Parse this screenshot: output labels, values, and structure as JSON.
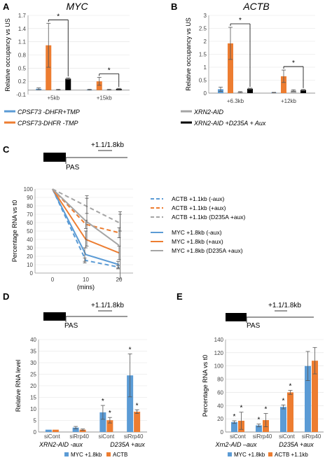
{
  "panels": {
    "A": {
      "letter": "A",
      "title": "MYC"
    },
    "B": {
      "letter": "B",
      "title": "ACTB"
    },
    "C": {
      "letter": "C"
    },
    "D": {
      "letter": "D"
    },
    "E": {
      "letter": "E"
    }
  },
  "legend_ab": {
    "items": [
      {
        "label": "CPSF73 -DHFR+TMP",
        "color": "#5b9bd5"
      },
      {
        "label": "XRN2-AID",
        "color": "#a5a5a5"
      },
      {
        "label": "CPSF73-DHFR -TMP",
        "color": "#ed7d31"
      },
      {
        "label": "XRN2-AID +D235A + Aux",
        "color": "#000000"
      }
    ]
  },
  "schematic": {
    "pas_label": "PAS",
    "probe_label": "+1.1/1.8kb"
  },
  "group_labels_d": {
    "left": "XRN2-AID -aux",
    "right": "D235A +aux"
  },
  "group_labels_e": {
    "left": "Xrn2-AID –aux",
    "right": "D235A +aux"
  },
  "colors": {
    "blue": "#5b9bd5",
    "orange": "#ed7d31",
    "gray": "#a5a5a5",
    "black": "#000000"
  },
  "chart_data": [
    {
      "panel": "A",
      "type": "bar",
      "title": "MYC",
      "ylabel": "Relative occupancy vs US",
      "categories": [
        "+5kb",
        "+15kb"
      ],
      "ylim": [
        -0.1,
        1.7
      ],
      "yticks": [
        -0.1,
        0.2,
        0.5,
        0.8,
        1.1,
        1.4,
        1.7
      ],
      "series": [
        {
          "name": "CPSF73 -DHFR+TMP",
          "color": "#5b9bd5",
          "values": [
            0.03,
            0.01
          ],
          "errors": [
            0.02,
            0.01
          ]
        },
        {
          "name": "CPSF73-DHFR -TMP",
          "color": "#ed7d31",
          "values": [
            1.02,
            0.2
          ],
          "errors": [
            0.5,
            0.09
          ]
        },
        {
          "name": "XRN2-AID",
          "color": "#a5a5a5",
          "values": [
            0.01,
            0.01
          ],
          "errors": [
            0.01,
            0.01
          ]
        },
        {
          "name": "XRN2-AID +D235A + Aux",
          "color": "#000000",
          "values": [
            0.26,
            0.03
          ],
          "errors": [
            0.02,
            0.01
          ]
        }
      ],
      "significance": [
        {
          "category": "+5kb",
          "from_series": 1,
          "to_series": 3,
          "label": "*"
        },
        {
          "category": "+15kb",
          "from_series": 1,
          "to_series": 3,
          "label": "*"
        }
      ]
    },
    {
      "panel": "B",
      "type": "bar",
      "title": "ACTB",
      "ylabel": "Relative occupancy vs US",
      "categories": [
        "+6.3kb",
        "+12kb"
      ],
      "ylim": [
        0,
        3
      ],
      "yticks": [
        0,
        0.5,
        1,
        1.5,
        2,
        2.5,
        3
      ],
      "series": [
        {
          "name": "CPSF73 -DHFR+TMP",
          "color": "#5b9bd5",
          "values": [
            0.15,
            0.02
          ],
          "errors": [
            0.08,
            0.01
          ]
        },
        {
          "name": "CPSF73-DHFR -TMP",
          "color": "#ed7d31",
          "values": [
            1.92,
            0.65
          ],
          "errors": [
            0.62,
            0.24
          ]
        },
        {
          "name": "XRN2-AID",
          "color": "#a5a5a5",
          "values": [
            0.04,
            0.1
          ],
          "errors": [
            0.02,
            0.03
          ]
        },
        {
          "name": "XRN2-AID +D235A + Aux",
          "color": "#000000",
          "values": [
            0.17,
            0.12
          ],
          "errors": [
            0.02,
            0.02
          ]
        }
      ],
      "significance": [
        {
          "category": "+6.3kb",
          "from_series": 1,
          "to_series": 3,
          "label": "*"
        },
        {
          "category": "+12kb",
          "from_series": 1,
          "to_series": 3,
          "label": "*"
        }
      ]
    },
    {
      "panel": "C",
      "type": "line",
      "ylabel": "Percentage RNA vs t0",
      "xlabel": "(mins)",
      "x": [
        0,
        10,
        20
      ],
      "ylim": [
        0,
        100
      ],
      "yticks": [
        0,
        10,
        20,
        30,
        40,
        50,
        60,
        70,
        80,
        90,
        100
      ],
      "series": [
        {
          "name": "ACTB +1.1kb (-aux)",
          "color": "#5b9bd5",
          "dashed": true,
          "values": [
            100,
            15,
            7
          ],
          "errors": [
            0,
            3,
            2
          ]
        },
        {
          "name": "ACTB +1.1kb (+aux)",
          "color": "#ed7d31",
          "dashed": true,
          "values": [
            100,
            58,
            48
          ],
          "errors": [
            0,
            5,
            6
          ]
        },
        {
          "name": "ACTB +1.1kb (D235A +aux)",
          "color": "#a5a5a5",
          "dashed": true,
          "values": [
            100,
            80,
            60
          ],
          "errors": [
            0,
            9,
            10
          ]
        },
        {
          "name": "MYC +1.8kb (-aux)",
          "color": "#5b9bd5",
          "dashed": false,
          "values": [
            100,
            22,
            10
          ],
          "errors": [
            0,
            8,
            4
          ]
        },
        {
          "name": "MYC +1.8kb (+aux)",
          "color": "#ed7d31",
          "dashed": false,
          "values": [
            100,
            40,
            24
          ],
          "errors": [
            0,
            10,
            8
          ]
        },
        {
          "name": "MYC +1.8kb (D235A +aux)",
          "color": "#a5a5a5",
          "dashed": false,
          "values": [
            100,
            62,
            33
          ],
          "errors": [
            0,
            30,
            40
          ]
        }
      ]
    },
    {
      "panel": "D",
      "type": "bar",
      "ylabel": "Relative RNA level",
      "categories": [
        "siCont",
        "siRrp40",
        "siCont",
        "siRrp40"
      ],
      "ylim": [
        0,
        40
      ],
      "yticks": [
        0,
        5,
        10,
        15,
        20,
        25,
        30,
        35,
        40
      ],
      "series": [
        {
          "name": "MYC +1.8kb",
          "color": "#5b9bd5",
          "values": [
            1,
            1.9,
            8.5,
            24.5
          ],
          "errors": [
            0,
            0.5,
            3,
            9.3
          ],
          "stars": [
            false,
            false,
            true,
            true
          ]
        },
        {
          "name": "ACTB",
          "color": "#ed7d31",
          "values": [
            1,
            1,
            5.1,
            8.8
          ],
          "errors": [
            0,
            0.3,
            1.2,
            0.8
          ],
          "stars": [
            false,
            false,
            true,
            true
          ]
        }
      ]
    },
    {
      "panel": "E",
      "type": "bar",
      "ylabel": "Percentage RNA vs t0",
      "categories": [
        "siCont",
        "siRrp40",
        "siCont",
        "siRrp40"
      ],
      "ylim": [
        0,
        140
      ],
      "yticks": [
        0,
        20,
        40,
        60,
        80,
        100,
        120,
        140
      ],
      "series": [
        {
          "name": "MYC +1.8kb",
          "color": "#5b9bd5",
          "values": [
            15,
            10,
            38,
            100
          ],
          "errors": [
            2,
            2,
            3,
            22
          ],
          "stars": [
            true,
            true,
            true,
            false
          ]
        },
        {
          "name": "ACTB +1.1kb",
          "color": "#ed7d31",
          "values": [
            17,
            18,
            60,
            108
          ],
          "errors": [
            13,
            10,
            3,
            20
          ],
          "stars": [
            true,
            true,
            true,
            false
          ]
        }
      ]
    }
  ]
}
